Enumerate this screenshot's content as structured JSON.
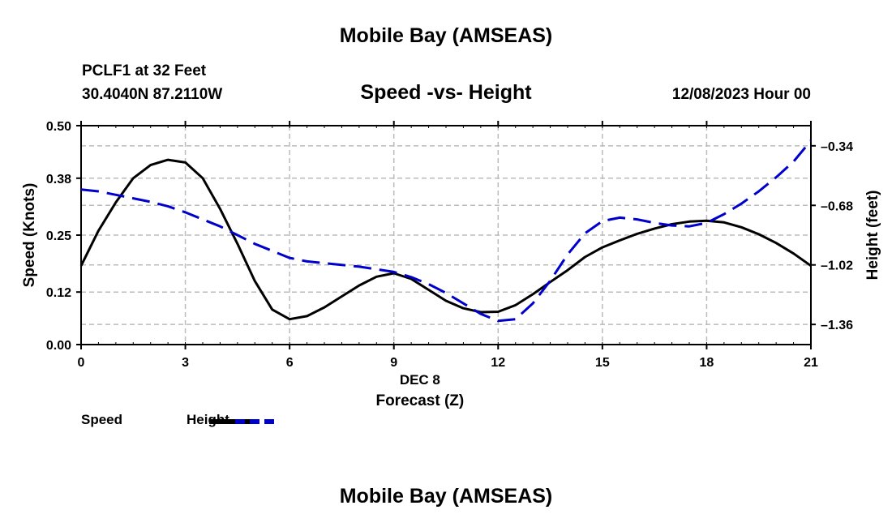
{
  "header": {
    "title": "Mobile Bay (AMSEAS)",
    "station": "PCLF1 at 32 Feet",
    "coords": "30.4040N  87.2110W",
    "subtitle": "Speed -vs- Height",
    "datetime": "12/08/2023 Hour 00"
  },
  "footer": {
    "title": "Mobile Bay (AMSEAS)"
  },
  "legend": {
    "speed_label": "Speed",
    "height_label": "Height"
  },
  "chart_data": {
    "type": "line",
    "title": "Speed -vs- Height",
    "xlabel": "Forecast (Z)",
    "xlabel_date": "DEC 8",
    "ylabel_left": "Speed (Knots)",
    "ylabel_right": "Height (feet)",
    "xlim": [
      0,
      21
    ],
    "ylim_left": [
      0,
      0.5
    ],
    "ylim_right": [
      -1.475,
      -0.225
    ],
    "x_ticks": [
      0,
      3,
      6,
      9,
      12,
      15,
      18,
      21
    ],
    "left_ticks": [
      0.0,
      0.12,
      0.25,
      0.38,
      0.5
    ],
    "left_tick_labels": [
      "0.00",
      "0.12",
      "0.25",
      "0.38",
      "0.50"
    ],
    "right_ticks": [
      -1.36,
      -1.02,
      -0.68,
      -0.34
    ],
    "right_tick_labels": [
      "–1.36",
      "–1.02",
      "–0.68",
      "–0.34"
    ],
    "grid": true,
    "colors": {
      "speed": "#000000",
      "height": "#0000cc",
      "grid": "#bbbbbb"
    },
    "series": [
      {
        "name": "Speed",
        "axis": "left",
        "style": "solid",
        "x": [
          0,
          0.5,
          1,
          1.5,
          2,
          2.5,
          3,
          3.5,
          4,
          4.5,
          5,
          5.5,
          6,
          6.5,
          7,
          7.5,
          8,
          8.5,
          9,
          9.5,
          10,
          10.5,
          11,
          11.5,
          12,
          12.5,
          13,
          13.5,
          14,
          14.5,
          15,
          15.5,
          16,
          16.5,
          17,
          17.5,
          18,
          18.5,
          19,
          19.5,
          20,
          20.5,
          21
        ],
        "values": [
          0.18,
          0.26,
          0.325,
          0.38,
          0.41,
          0.422,
          0.416,
          0.38,
          0.31,
          0.23,
          0.145,
          0.08,
          0.058,
          0.065,
          0.085,
          0.11,
          0.135,
          0.155,
          0.163,
          0.15,
          0.125,
          0.1,
          0.083,
          0.074,
          0.075,
          0.09,
          0.115,
          0.143,
          0.17,
          0.2,
          0.222,
          0.238,
          0.253,
          0.265,
          0.275,
          0.281,
          0.283,
          0.279,
          0.268,
          0.252,
          0.232,
          0.208,
          0.18
        ]
      },
      {
        "name": "Height",
        "axis": "right",
        "style": "dashed",
        "x": [
          0,
          0.5,
          1,
          1.5,
          2,
          2.5,
          3,
          3.5,
          4,
          4.5,
          5,
          5.5,
          6,
          6.5,
          7,
          7.5,
          8,
          8.5,
          9,
          9.5,
          10,
          10.5,
          11,
          11.5,
          12,
          12.5,
          13,
          13.5,
          14,
          14.5,
          15,
          15.5,
          16,
          16.5,
          17,
          17.5,
          18,
          18.5,
          19,
          19.5,
          20,
          20.5,
          21
        ],
        "values": [
          -0.59,
          -0.6,
          -0.62,
          -0.64,
          -0.66,
          -0.685,
          -0.72,
          -0.76,
          -0.8,
          -0.85,
          -0.9,
          -0.94,
          -0.98,
          -1.0,
          -1.01,
          -1.02,
          -1.03,
          -1.045,
          -1.06,
          -1.09,
          -1.13,
          -1.18,
          -1.24,
          -1.3,
          -1.34,
          -1.33,
          -1.24,
          -1.11,
          -0.96,
          -0.84,
          -0.77,
          -0.75,
          -0.76,
          -0.78,
          -0.795,
          -0.8,
          -0.78,
          -0.73,
          -0.67,
          -0.6,
          -0.52,
          -0.43,
          -0.31
        ]
      }
    ]
  }
}
